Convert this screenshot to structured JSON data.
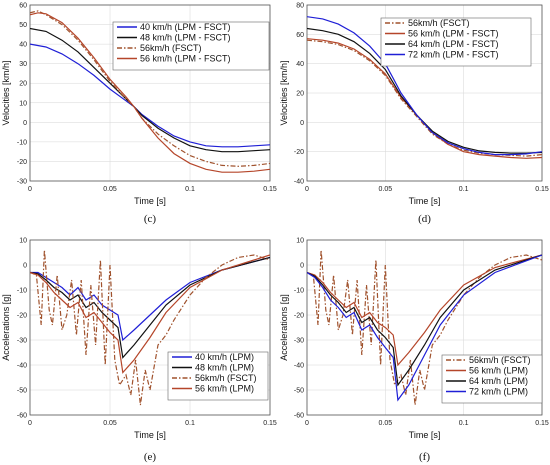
{
  "figure": {
    "background": "#ffffff"
  },
  "chart_data": [
    {
      "id": "c",
      "caption": "(c)",
      "type": "line",
      "xlabel": "Time [s]",
      "ylabel": "Velocities [km/h]",
      "xlim": [
        0,
        0.15
      ],
      "ylim": [
        -30,
        60
      ],
      "xticks": [
        0,
        0.05,
        0.1,
        0.15
      ],
      "xtick_labels": [
        "0",
        "0.05",
        "0.1",
        "0.15"
      ],
      "yticks": [
        -30,
        -20,
        -10,
        0,
        10,
        20,
        30,
        40,
        50,
        60
      ],
      "ytick_labels": [
        "-30",
        "-20",
        "-10",
        "0",
        "10",
        "20",
        "30",
        "40",
        "50",
        "60"
      ],
      "grid": true,
      "legend_position": "top-right",
      "series": [
        {
          "name": "40 km/h (LPM - FSCT)",
          "color": "#1f1fd6",
          "dash": "solid",
          "x": [
            0,
            0.01,
            0.02,
            0.03,
            0.04,
            0.05,
            0.06,
            0.065,
            0.07,
            0.08,
            0.09,
            0.1,
            0.11,
            0.12,
            0.13,
            0.14,
            0.15
          ],
          "y": [
            40,
            38.5,
            35,
            30,
            24,
            17,
            11,
            8,
            4,
            -2,
            -7,
            -10,
            -12,
            -12.5,
            -12.5,
            -12,
            -11.5
          ]
        },
        {
          "name": "48 km/h (LPM - FSCT)",
          "color": "#111111",
          "dash": "solid",
          "x": [
            0,
            0.01,
            0.02,
            0.03,
            0.04,
            0.05,
            0.06,
            0.065,
            0.07,
            0.08,
            0.09,
            0.1,
            0.11,
            0.12,
            0.13,
            0.14,
            0.15
          ],
          "y": [
            48,
            46.5,
            42,
            36,
            28,
            20,
            12,
            8,
            3.5,
            -3,
            -8,
            -12,
            -14,
            -15,
            -15,
            -14.5,
            -14
          ]
        },
        {
          "name": "56km/h (FSCT)",
          "color": "#a0522d",
          "dash": "dashdot",
          "x": [
            0,
            0.005,
            0.01,
            0.02,
            0.03,
            0.04,
            0.05,
            0.06,
            0.065,
            0.07,
            0.08,
            0.09,
            0.1,
            0.11,
            0.12,
            0.13,
            0.14,
            0.15
          ],
          "y": [
            56,
            57,
            55,
            50,
            42,
            32,
            21,
            12,
            8,
            2,
            -6,
            -12,
            -17,
            -20,
            -22,
            -22.5,
            -22,
            -21
          ]
        },
        {
          "name": "56 km/h (LPM - FSCT)",
          "color": "#b5462a",
          "dash": "solid",
          "x": [
            0,
            0.005,
            0.01,
            0.02,
            0.03,
            0.04,
            0.05,
            0.06,
            0.065,
            0.07,
            0.08,
            0.09,
            0.1,
            0.11,
            0.12,
            0.13,
            0.14,
            0.15
          ],
          "y": [
            55,
            56,
            55.5,
            51,
            43,
            33,
            22,
            13,
            8,
            2,
            -8,
            -16,
            -21,
            -24,
            -25.5,
            -25.5,
            -25,
            -24
          ]
        }
      ]
    },
    {
      "id": "d",
      "caption": "(d)",
      "type": "line",
      "xlabel": "Time [s]",
      "ylabel": "Velocities [km/h]",
      "xlim": [
        0,
        0.15
      ],
      "ylim": [
        -40,
        80
      ],
      "xticks": [
        0,
        0.05,
        0.1,
        0.15
      ],
      "xtick_labels": [
        "0",
        "0.05",
        "0.1",
        "0.15"
      ],
      "yticks": [
        -40,
        -20,
        0,
        20,
        40,
        60,
        80
      ],
      "ytick_labels": [
        "-40",
        "-20",
        "0",
        "20",
        "40",
        "60",
        "80"
      ],
      "grid": true,
      "legend_position": "top-right",
      "series": [
        {
          "name": "56km/h (FSCT)",
          "color": "#a0522d",
          "dash": "dashdot",
          "x": [
            0,
            0.01,
            0.02,
            0.03,
            0.04,
            0.05,
            0.055,
            0.06,
            0.07,
            0.08,
            0.09,
            0.1,
            0.11,
            0.12,
            0.13,
            0.14,
            0.15
          ],
          "y": [
            56,
            55,
            53,
            49,
            42,
            32,
            24,
            16,
            4,
            -8,
            -15,
            -19,
            -21,
            -22,
            -22.5,
            -23,
            -22
          ]
        },
        {
          "name": "56 km/h (LPM - FSCT)",
          "color": "#b5462a",
          "dash": "solid",
          "x": [
            0,
            0.01,
            0.02,
            0.03,
            0.04,
            0.05,
            0.055,
            0.06,
            0.07,
            0.08,
            0.09,
            0.1,
            0.11,
            0.12,
            0.13,
            0.14,
            0.15
          ],
          "y": [
            57,
            56,
            54,
            50,
            43,
            33,
            25,
            17,
            5,
            -7,
            -15,
            -20,
            -22,
            -23,
            -24,
            -24.5,
            -24
          ]
        },
        {
          "name": "64 km/h (LPM - FSCT)",
          "color": "#111111",
          "dash": "solid",
          "x": [
            0,
            0.01,
            0.02,
            0.03,
            0.04,
            0.05,
            0.055,
            0.06,
            0.07,
            0.08,
            0.09,
            0.1,
            0.11,
            0.12,
            0.13,
            0.14,
            0.15
          ],
          "y": [
            64,
            62.5,
            60,
            55,
            47,
            36,
            27,
            18,
            5,
            -6,
            -13,
            -17,
            -19.5,
            -20.5,
            -21,
            -21,
            -20.5
          ]
        },
        {
          "name": "72 km/h (LPM - FSCT)",
          "color": "#1f1fd6",
          "dash": "solid",
          "x": [
            0,
            0.01,
            0.02,
            0.03,
            0.04,
            0.05,
            0.055,
            0.06,
            0.07,
            0.08,
            0.09,
            0.1,
            0.11,
            0.12,
            0.13,
            0.14,
            0.15
          ],
          "y": [
            72,
            70.5,
            67,
            61,
            52,
            40,
            30,
            20,
            5,
            -7,
            -14,
            -18,
            -20.5,
            -22,
            -22,
            -21.5,
            -20
          ]
        }
      ]
    },
    {
      "id": "e",
      "caption": "(e)",
      "type": "line",
      "xlabel": "Time [s]",
      "ylabel": "Accelerations [g]",
      "xlim": [
        0,
        0.15
      ],
      "ylim": [
        -60,
        10
      ],
      "xticks": [
        0,
        0.05,
        0.1,
        0.15
      ],
      "xtick_labels": [
        "0",
        "0.05",
        "0.1",
        "0.15"
      ],
      "yticks": [
        -60,
        -50,
        -40,
        -30,
        -20,
        -10,
        0,
        10
      ],
      "ytick_labels": [
        "-60",
        "-50",
        "-40",
        "-30",
        "-20",
        "-10",
        "0",
        "10"
      ],
      "grid": true,
      "legend_position": "bottom-right",
      "series": [
        {
          "name": "40 km/h (LPM)",
          "color": "#1f1fd6",
          "dash": "solid",
          "x": [
            0,
            0.005,
            0.01,
            0.015,
            0.02,
            0.025,
            0.03,
            0.035,
            0.04,
            0.045,
            0.05,
            0.055,
            0.058,
            0.065,
            0.075,
            0.085,
            0.1,
            0.12,
            0.15
          ],
          "y": [
            -3,
            -3,
            -5,
            -7,
            -9,
            -12,
            -9,
            -14,
            -12,
            -16,
            -18,
            -20,
            -30,
            -26,
            -20,
            -14,
            -7,
            -2,
            3
          ]
        },
        {
          "name": "48 km/h (LPM)",
          "color": "#111111",
          "dash": "solid",
          "x": [
            0,
            0.005,
            0.01,
            0.015,
            0.02,
            0.025,
            0.03,
            0.035,
            0.04,
            0.045,
            0.05,
            0.055,
            0.058,
            0.065,
            0.075,
            0.085,
            0.1,
            0.12,
            0.15
          ],
          "y": [
            -3,
            -3.5,
            -6,
            -9,
            -11,
            -14,
            -12,
            -17,
            -15,
            -19,
            -22,
            -25,
            -37,
            -32,
            -24,
            -16,
            -8,
            -2,
            3
          ]
        },
        {
          "name": "56km/h (FSCT)",
          "color": "#a0522d",
          "dash": "dashdot",
          "x": [
            0,
            0.004,
            0.007,
            0.009,
            0.012,
            0.014,
            0.017,
            0.02,
            0.023,
            0.026,
            0.029,
            0.032,
            0.035,
            0.038,
            0.041,
            0.044,
            0.047,
            0.05,
            0.053,
            0.056,
            0.06,
            0.063,
            0.066,
            0.069,
            0.072,
            0.075,
            0.08,
            0.085,
            0.09,
            0.1,
            0.11,
            0.12,
            0.13,
            0.14,
            0.15
          ],
          "y": [
            -3,
            -4,
            -24,
            6,
            -18,
            -24,
            -4,
            -26,
            -20,
            -6,
            -28,
            -6,
            -36,
            -8,
            -32,
            2,
            -40,
            0,
            -38,
            -48,
            -44,
            -52,
            -38,
            -56,
            -42,
            -50,
            -32,
            -28,
            -22,
            -12,
            -5,
            0,
            3,
            4,
            2
          ]
        },
        {
          "name": "56 km/h (LPM)",
          "color": "#b5462a",
          "dash": "solid",
          "x": [
            0,
            0.005,
            0.01,
            0.015,
            0.02,
            0.025,
            0.03,
            0.035,
            0.04,
            0.045,
            0.05,
            0.055,
            0.058,
            0.065,
            0.075,
            0.085,
            0.1,
            0.12,
            0.15
          ],
          "y": [
            -3,
            -4,
            -7,
            -11,
            -14,
            -17,
            -15,
            -21,
            -19,
            -23,
            -27,
            -30,
            -43,
            -38,
            -29,
            -19,
            -9,
            -2,
            4
          ]
        }
      ]
    },
    {
      "id": "f",
      "caption": "(f)",
      "type": "line",
      "xlabel": "Time [s]",
      "ylabel": "Accelerations [g]",
      "xlim": [
        0,
        0.15
      ],
      "ylim": [
        -60,
        10
      ],
      "xticks": [
        0,
        0.05,
        0.1,
        0.15
      ],
      "xtick_labels": [
        "0",
        "0.05",
        "0.1",
        "0.15"
      ],
      "yticks": [
        -60,
        -50,
        -40,
        -30,
        -20,
        -10,
        0,
        10
      ],
      "ytick_labels": [
        "-60",
        "-50",
        "-40",
        "-30",
        "-20",
        "-10",
        "0",
        "10"
      ],
      "grid": true,
      "legend_position": "bottom-right",
      "series": [
        {
          "name": "56km/h (FSCT)",
          "color": "#a0522d",
          "dash": "dashdot",
          "x": [
            0,
            0.004,
            0.007,
            0.009,
            0.012,
            0.014,
            0.017,
            0.02,
            0.023,
            0.026,
            0.029,
            0.032,
            0.035,
            0.038,
            0.041,
            0.044,
            0.047,
            0.05,
            0.053,
            0.056,
            0.06,
            0.063,
            0.066,
            0.069,
            0.072,
            0.075,
            0.08,
            0.085,
            0.09,
            0.1,
            0.11,
            0.12,
            0.13,
            0.14,
            0.15
          ],
          "y": [
            -3,
            -4,
            -24,
            6,
            -18,
            -24,
            -4,
            -26,
            -20,
            -6,
            -28,
            -6,
            -36,
            -8,
            -32,
            2,
            -40,
            0,
            -38,
            -48,
            -44,
            -52,
            -38,
            -56,
            -42,
            -50,
            -32,
            -28,
            -22,
            -12,
            -5,
            0,
            3,
            4,
            2
          ]
        },
        {
          "name": "56 km/h (LPM)",
          "color": "#b5462a",
          "dash": "solid",
          "x": [
            0,
            0.005,
            0.01,
            0.015,
            0.02,
            0.025,
            0.03,
            0.035,
            0.04,
            0.045,
            0.05,
            0.055,
            0.058,
            0.065,
            0.075,
            0.085,
            0.1,
            0.12,
            0.15
          ],
          "y": [
            -3,
            -4,
            -7,
            -11,
            -14,
            -17,
            -15,
            -21,
            -19,
            -23,
            -25,
            -28,
            -40,
            -35,
            -27,
            -18,
            -8,
            -1,
            4
          ]
        },
        {
          "name": "64 km/h (LPM)",
          "color": "#111111",
          "dash": "solid",
          "x": [
            0,
            0.005,
            0.01,
            0.015,
            0.02,
            0.025,
            0.03,
            0.035,
            0.04,
            0.045,
            0.05,
            0.055,
            0.058,
            0.065,
            0.075,
            0.085,
            0.1,
            0.12,
            0.15
          ],
          "y": [
            -3,
            -4.5,
            -8,
            -12,
            -15,
            -19,
            -17,
            -23,
            -21,
            -26,
            -29,
            -33,
            -48,
            -42,
            -32,
            -21,
            -10,
            -2,
            4
          ]
        },
        {
          "name": "72 km/h (LPM)",
          "color": "#1f1fd6",
          "dash": "solid",
          "x": [
            0,
            0.005,
            0.01,
            0.015,
            0.02,
            0.025,
            0.03,
            0.035,
            0.04,
            0.045,
            0.05,
            0.055,
            0.058,
            0.065,
            0.075,
            0.085,
            0.1,
            0.12,
            0.15
          ],
          "y": [
            -3,
            -5,
            -9,
            -14,
            -17,
            -21,
            -19,
            -26,
            -24,
            -29,
            -33,
            -37,
            -54,
            -48,
            -36,
            -24,
            -12,
            -3,
            4
          ]
        }
      ]
    }
  ]
}
